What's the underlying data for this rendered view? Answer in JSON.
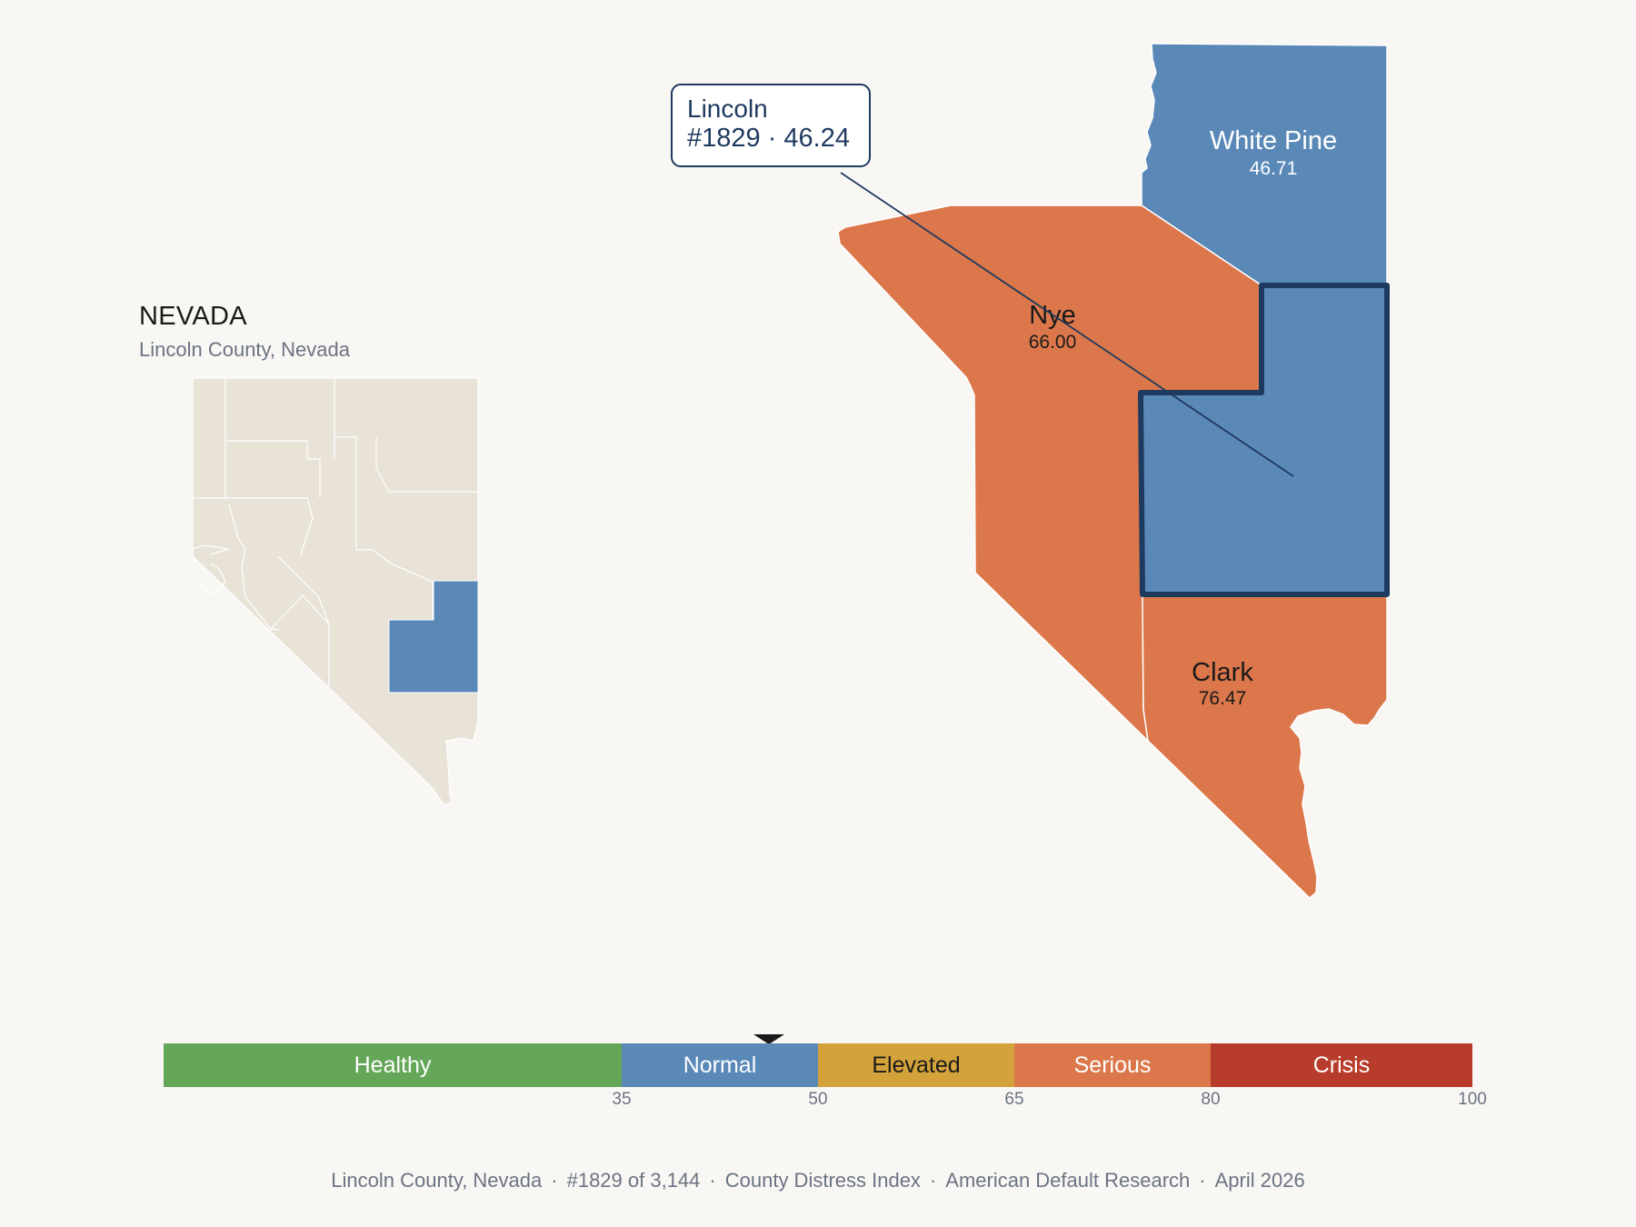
{
  "state": {
    "title": "NEVADA",
    "subtitle": "Lincoln County, Nevada"
  },
  "counties": {
    "white_pine": {
      "name": "White Pine",
      "value": "46.71",
      "color": "#5a89b8"
    },
    "nye": {
      "name": "Nye",
      "value": "66.00",
      "color": "#db774a"
    },
    "clark": {
      "name": "Clark",
      "value": "76.47",
      "color": "#db774a"
    },
    "lincoln": {
      "color": "#5a89b8",
      "outline": "#1f3a5f"
    }
  },
  "callout": {
    "name": "Lincoln",
    "detail": "#1829 · 46.24"
  },
  "inset": {
    "base_color": "#e8e2d7",
    "highlight_color": "#5a89b8"
  },
  "scale": {
    "segments": [
      {
        "label": "Healthy",
        "color": "#65a758",
        "text_color": "#ffffff",
        "from": 0,
        "to": 35
      },
      {
        "label": "Normal",
        "color": "#5a89b8",
        "text_color": "#ffffff",
        "from": 35,
        "to": 50
      },
      {
        "label": "Elevated",
        "color": "#d4a23a",
        "text_color": "#1a1a1a",
        "from": 50,
        "to": 65
      },
      {
        "label": "Serious",
        "color": "#db774a",
        "text_color": "#ffffff",
        "from": 65,
        "to": 80
      },
      {
        "label": "Crisis",
        "color": "#b83c2b",
        "text_color": "#ffffff",
        "from": 80,
        "to": 100
      }
    ],
    "ticks": [
      "35",
      "50",
      "65",
      "80",
      "100"
    ],
    "marker_value": 46.24
  },
  "footer": {
    "county": "Lincoln County, Nevada",
    "rank": "#1829 of 3,144",
    "index": "County Distress Index",
    "org": "American Default Research",
    "date": "April 2026"
  }
}
